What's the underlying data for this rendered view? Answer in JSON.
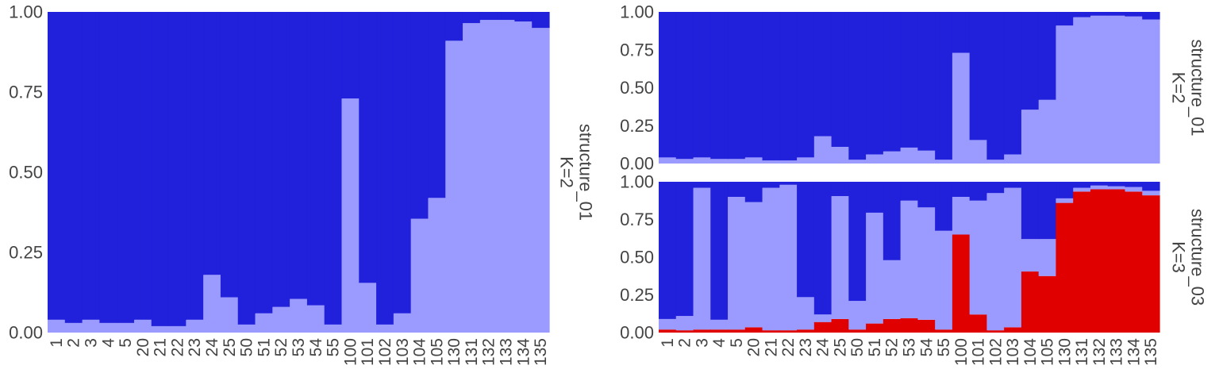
{
  "colors": {
    "cluster1": "#2121dc",
    "cluster2": "#9a9aff",
    "cluster3": "#e00000",
    "text": "#444444"
  },
  "chart_data": [
    {
      "type": "bar",
      "stacked": true,
      "panel": "left",
      "strip_label": [
        "structure_01",
        "K=2"
      ],
      "categories": [
        "1",
        "2",
        "3",
        "4",
        "5",
        "20",
        "21",
        "22",
        "23",
        "24",
        "25",
        "50",
        "51",
        "52",
        "53",
        "54",
        "55",
        "100",
        "101",
        "102",
        "103",
        "104",
        "105",
        "130",
        "131",
        "132",
        "133",
        "134",
        "135"
      ],
      "series": [
        {
          "color_key": "cluster2",
          "values": [
            0.04,
            0.03,
            0.04,
            0.03,
            0.03,
            0.04,
            0.02,
            0.02,
            0.04,
            0.18,
            0.11,
            0.025,
            0.06,
            0.08,
            0.105,
            0.085,
            0.025,
            0.73,
            0.155,
            0.025,
            0.06,
            0.355,
            0.42,
            0.91,
            0.965,
            0.975,
            0.975,
            0.97,
            0.95
          ]
        },
        {
          "color_key": "cluster1",
          "values": [
            0.96,
            0.97,
            0.96,
            0.97,
            0.97,
            0.96,
            0.98,
            0.98,
            0.96,
            0.82,
            0.89,
            0.975,
            0.94,
            0.92,
            0.895,
            0.915,
            0.975,
            0.27,
            0.845,
            0.975,
            0.94,
            0.645,
            0.58,
            0.09,
            0.035,
            0.025,
            0.025,
            0.03,
            0.05
          ]
        }
      ],
      "ylim": [
        0,
        1
      ],
      "yticks": [
        "0.00",
        "0.25",
        "0.50",
        "0.75",
        "1.00"
      ]
    },
    {
      "type": "bar",
      "stacked": true,
      "panel": "right-top",
      "strip_label": [
        "structure_01",
        "K=2"
      ],
      "categories": [
        "1",
        "2",
        "3",
        "4",
        "5",
        "20",
        "21",
        "22",
        "23",
        "24",
        "25",
        "50",
        "51",
        "52",
        "53",
        "54",
        "55",
        "100",
        "101",
        "102",
        "103",
        "104",
        "105",
        "130",
        "131",
        "132",
        "133",
        "134",
        "135"
      ],
      "series": [
        {
          "color_key": "cluster2",
          "values": [
            0.04,
            0.03,
            0.04,
            0.03,
            0.03,
            0.04,
            0.02,
            0.02,
            0.04,
            0.18,
            0.11,
            0.025,
            0.06,
            0.08,
            0.105,
            0.085,
            0.025,
            0.73,
            0.155,
            0.025,
            0.06,
            0.355,
            0.42,
            0.91,
            0.965,
            0.975,
            0.975,
            0.97,
            0.95
          ]
        },
        {
          "color_key": "cluster1",
          "values": [
            0.96,
            0.97,
            0.96,
            0.97,
            0.97,
            0.96,
            0.98,
            0.98,
            0.96,
            0.82,
            0.89,
            0.975,
            0.94,
            0.92,
            0.895,
            0.915,
            0.975,
            0.27,
            0.845,
            0.975,
            0.94,
            0.645,
            0.58,
            0.09,
            0.035,
            0.025,
            0.025,
            0.03,
            0.05
          ]
        }
      ],
      "ylim": [
        0,
        1
      ],
      "yticks": [
        "0.00",
        "0.25",
        "0.50",
        "0.75",
        "1.00"
      ]
    },
    {
      "type": "bar",
      "stacked": true,
      "panel": "right-bottom",
      "strip_label": [
        "structure_03",
        "K=3"
      ],
      "categories": [
        "1",
        "2",
        "3",
        "4",
        "5",
        "20",
        "21",
        "22",
        "23",
        "24",
        "25",
        "50",
        "51",
        "52",
        "53",
        "54",
        "55",
        "100",
        "101",
        "102",
        "103",
        "104",
        "105",
        "130",
        "131",
        "132",
        "133",
        "134",
        "135"
      ],
      "series": [
        {
          "color_key": "cluster3",
          "values": [
            0.02,
            0.015,
            0.02,
            0.02,
            0.02,
            0.035,
            0.015,
            0.015,
            0.02,
            0.07,
            0.09,
            0.02,
            0.06,
            0.09,
            0.095,
            0.085,
            0.02,
            0.65,
            0.12,
            0.015,
            0.035,
            0.405,
            0.375,
            0.86,
            0.935,
            0.95,
            0.95,
            0.935,
            0.91
          ]
        },
        {
          "color_key": "cluster2",
          "values": [
            0.07,
            0.095,
            0.94,
            0.065,
            0.88,
            0.83,
            0.945,
            0.965,
            0.215,
            0.05,
            0.815,
            0.19,
            0.735,
            0.39,
            0.78,
            0.745,
            0.655,
            0.25,
            0.755,
            0.91,
            0.925,
            0.215,
            0.245,
            0.03,
            0.025,
            0.025,
            0.02,
            0.03,
            0.03
          ]
        },
        {
          "color_key": "cluster1",
          "values": [
            0.91,
            0.89,
            0.04,
            0.915,
            0.1,
            0.135,
            0.04,
            0.02,
            0.765,
            0.88,
            0.095,
            0.79,
            0.205,
            0.52,
            0.125,
            0.17,
            0.325,
            0.1,
            0.125,
            0.075,
            0.04,
            0.38,
            0.38,
            0.11,
            0.04,
            0.025,
            0.03,
            0.035,
            0.06
          ]
        }
      ],
      "ylim": [
        0,
        1
      ],
      "yticks": [
        "0.00",
        "0.25",
        "0.50",
        "0.75",
        "1.00"
      ]
    }
  ]
}
